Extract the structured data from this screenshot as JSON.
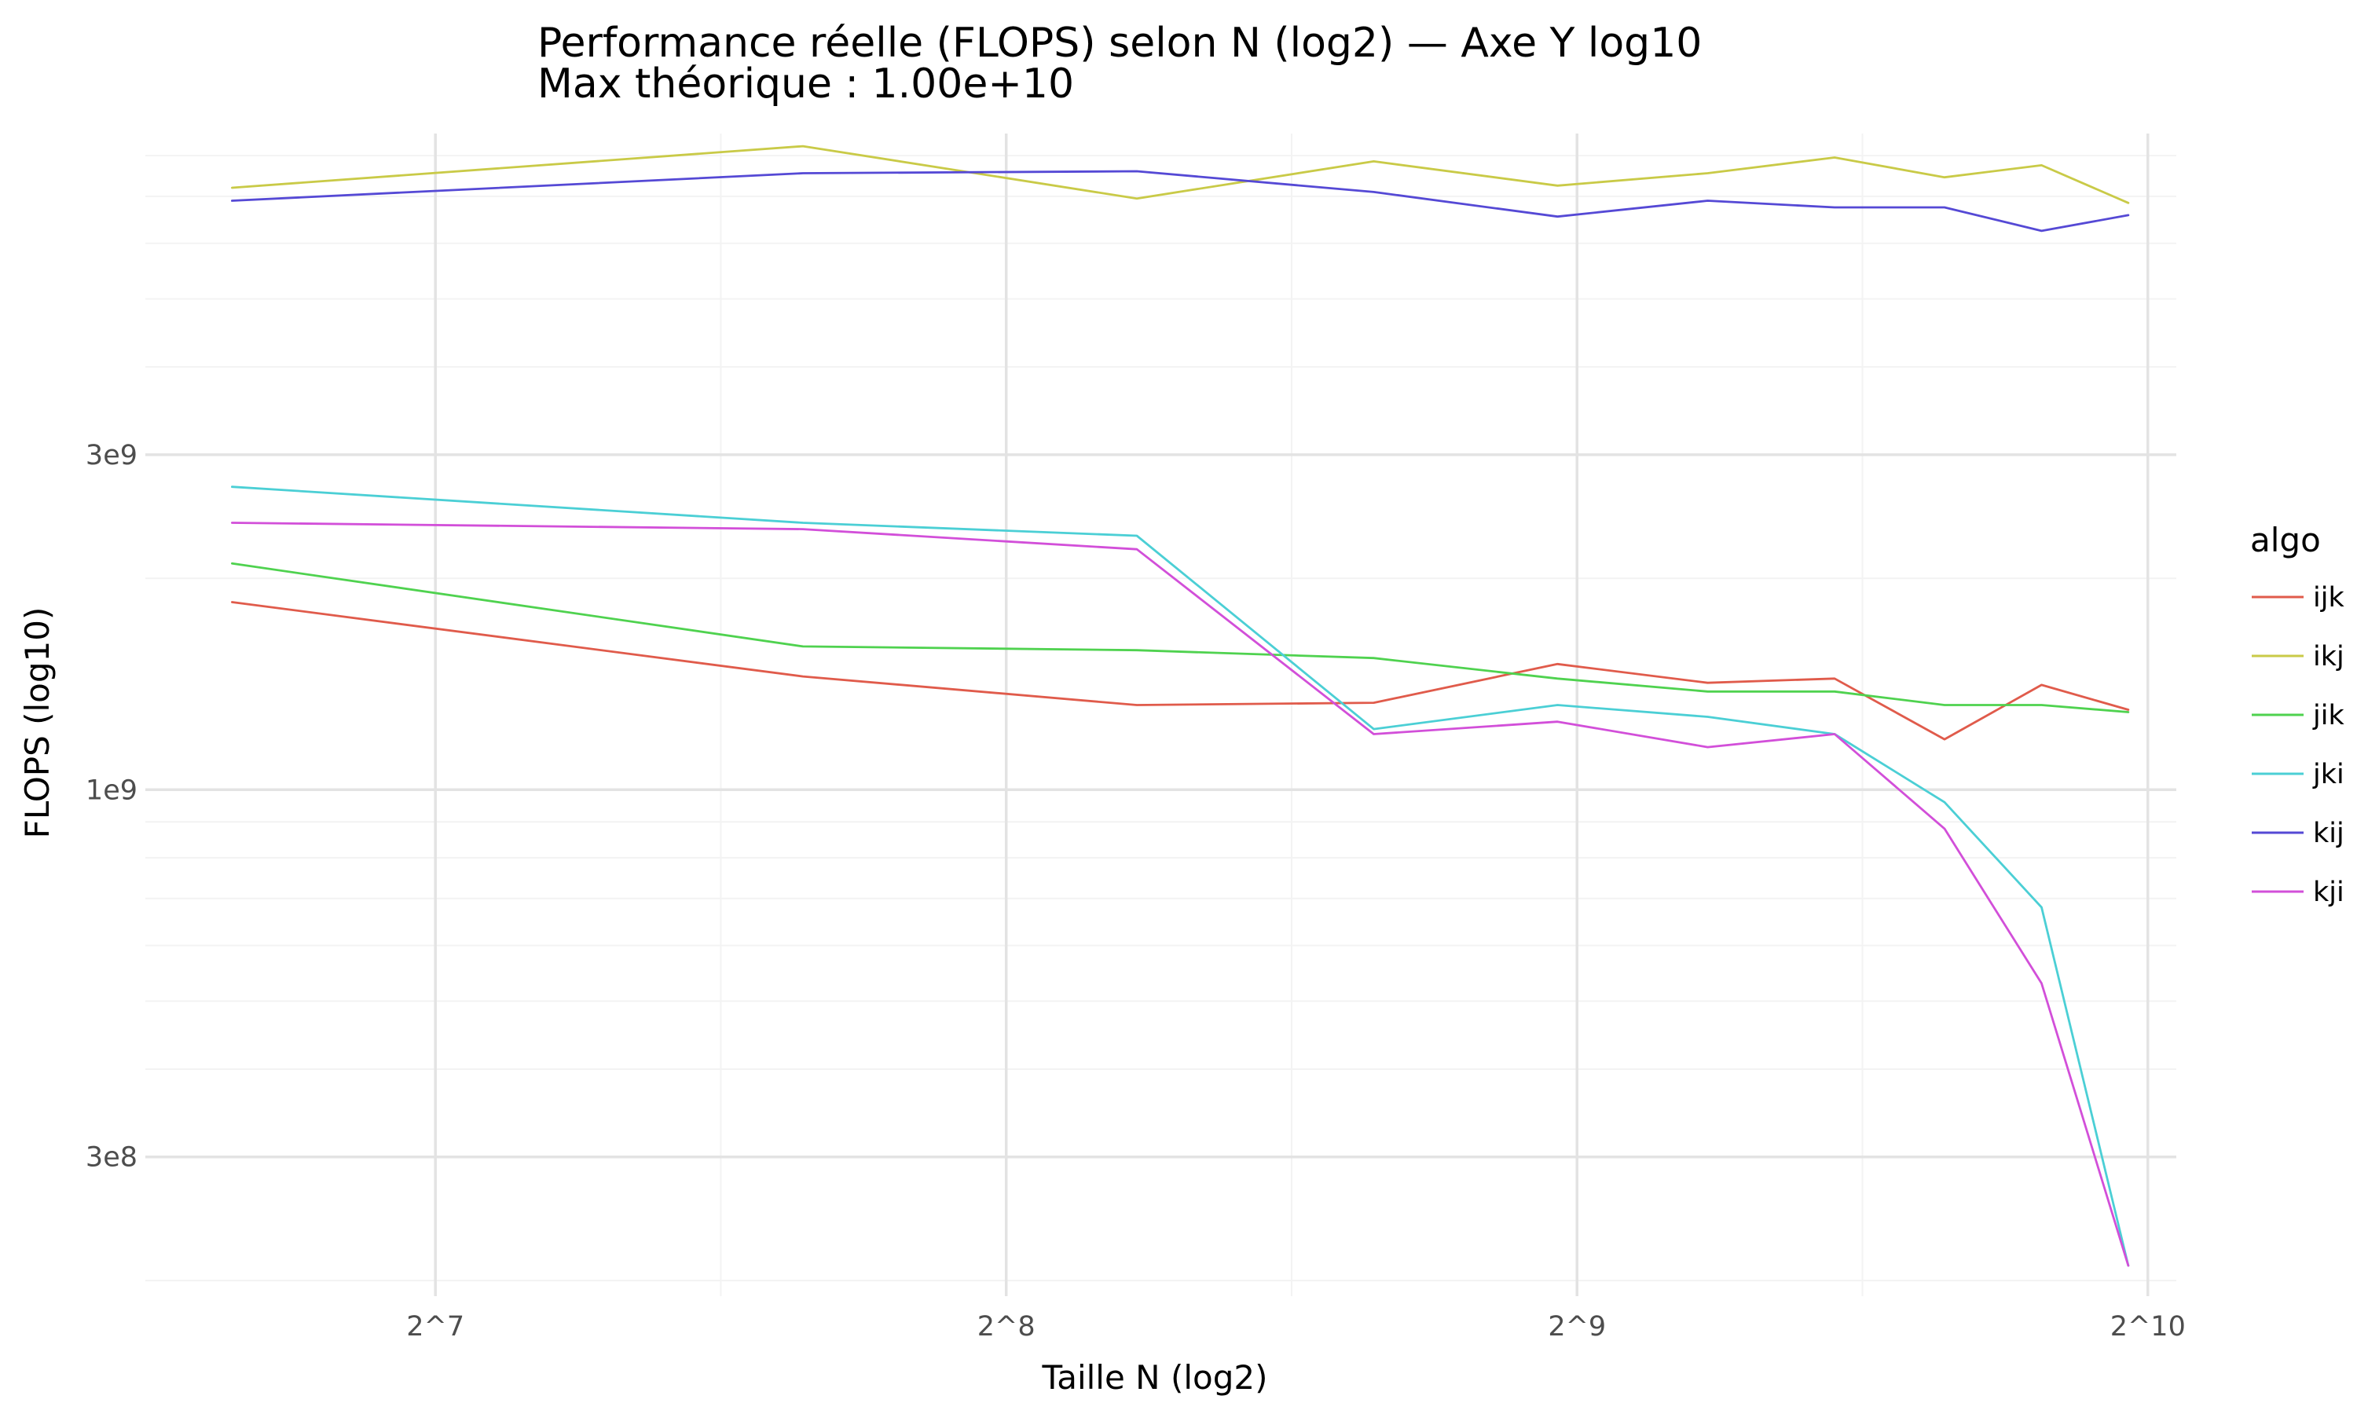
{
  "chart_data": {
    "type": "line",
    "title": "Performance réelle (FLOPS) selon N (log2) — Axe Y log10",
    "subtitle": "Max théorique : 1.00e+10",
    "xlabel": "Taille N (log2)",
    "ylabel": "FLOPS (log10)",
    "x_scale": "log2",
    "y_scale": "log10",
    "xlim": [
      90,
      1060
    ],
    "ylim": [
      190000000,
      8600000000
    ],
    "x_ticks": [
      {
        "value": 128,
        "label": "2^7"
      },
      {
        "value": 256,
        "label": "2^8"
      },
      {
        "value": 512,
        "label": "2^9"
      },
      {
        "value": 1024,
        "label": "2^10"
      }
    ],
    "y_ticks": [
      {
        "value": 300000000,
        "label": "3e8"
      },
      {
        "value": 1000000000,
        "label": "1e9"
      },
      {
        "value": 3000000000,
        "label": "3e9"
      }
    ],
    "grid": true,
    "legend": {
      "title": "algo",
      "position": "right"
    },
    "x": [
      100,
      200,
      300,
      400,
      500,
      600,
      700,
      800,
      900,
      1000
    ],
    "series": [
      {
        "name": "ijk",
        "color": "#E05B4B",
        "values": [
          1850000000,
          1450000000,
          1320000000,
          1330000000,
          1510000000,
          1420000000,
          1440000000,
          1180000000,
          1410000000,
          1300000000
        ]
      },
      {
        "name": "ikj",
        "color": "#C9CA47",
        "values": [
          7200000000,
          8250000000,
          6950000000,
          7850000000,
          7250000000,
          7550000000,
          7950000000,
          7450000000,
          7750000000,
          6850000000
        ]
      },
      {
        "name": "jik",
        "color": "#4FD24F",
        "values": [
          2100000000,
          1600000000,
          1580000000,
          1540000000,
          1440000000,
          1380000000,
          1380000000,
          1320000000,
          1320000000,
          1290000000
        ]
      },
      {
        "name": "jki",
        "color": "#4BCFD5",
        "values": [
          2700000000,
          2400000000,
          2300000000,
          1220000000,
          1320000000,
          1270000000,
          1200000000,
          960000000,
          680000000,
          210000000
        ]
      },
      {
        "name": "kij",
        "color": "#5549D5",
        "values": [
          6900000000,
          7550000000,
          7600000000,
          7100000000,
          6550000000,
          6900000000,
          6750000000,
          6750000000,
          6250000000,
          6580000000
        ]
      },
      {
        "name": "kji",
        "color": "#D24FD9",
        "values": [
          2400000000,
          2350000000,
          2200000000,
          1200000000,
          1250000000,
          1150000000,
          1200000000,
          880000000,
          530000000,
          210000000
        ]
      }
    ]
  }
}
